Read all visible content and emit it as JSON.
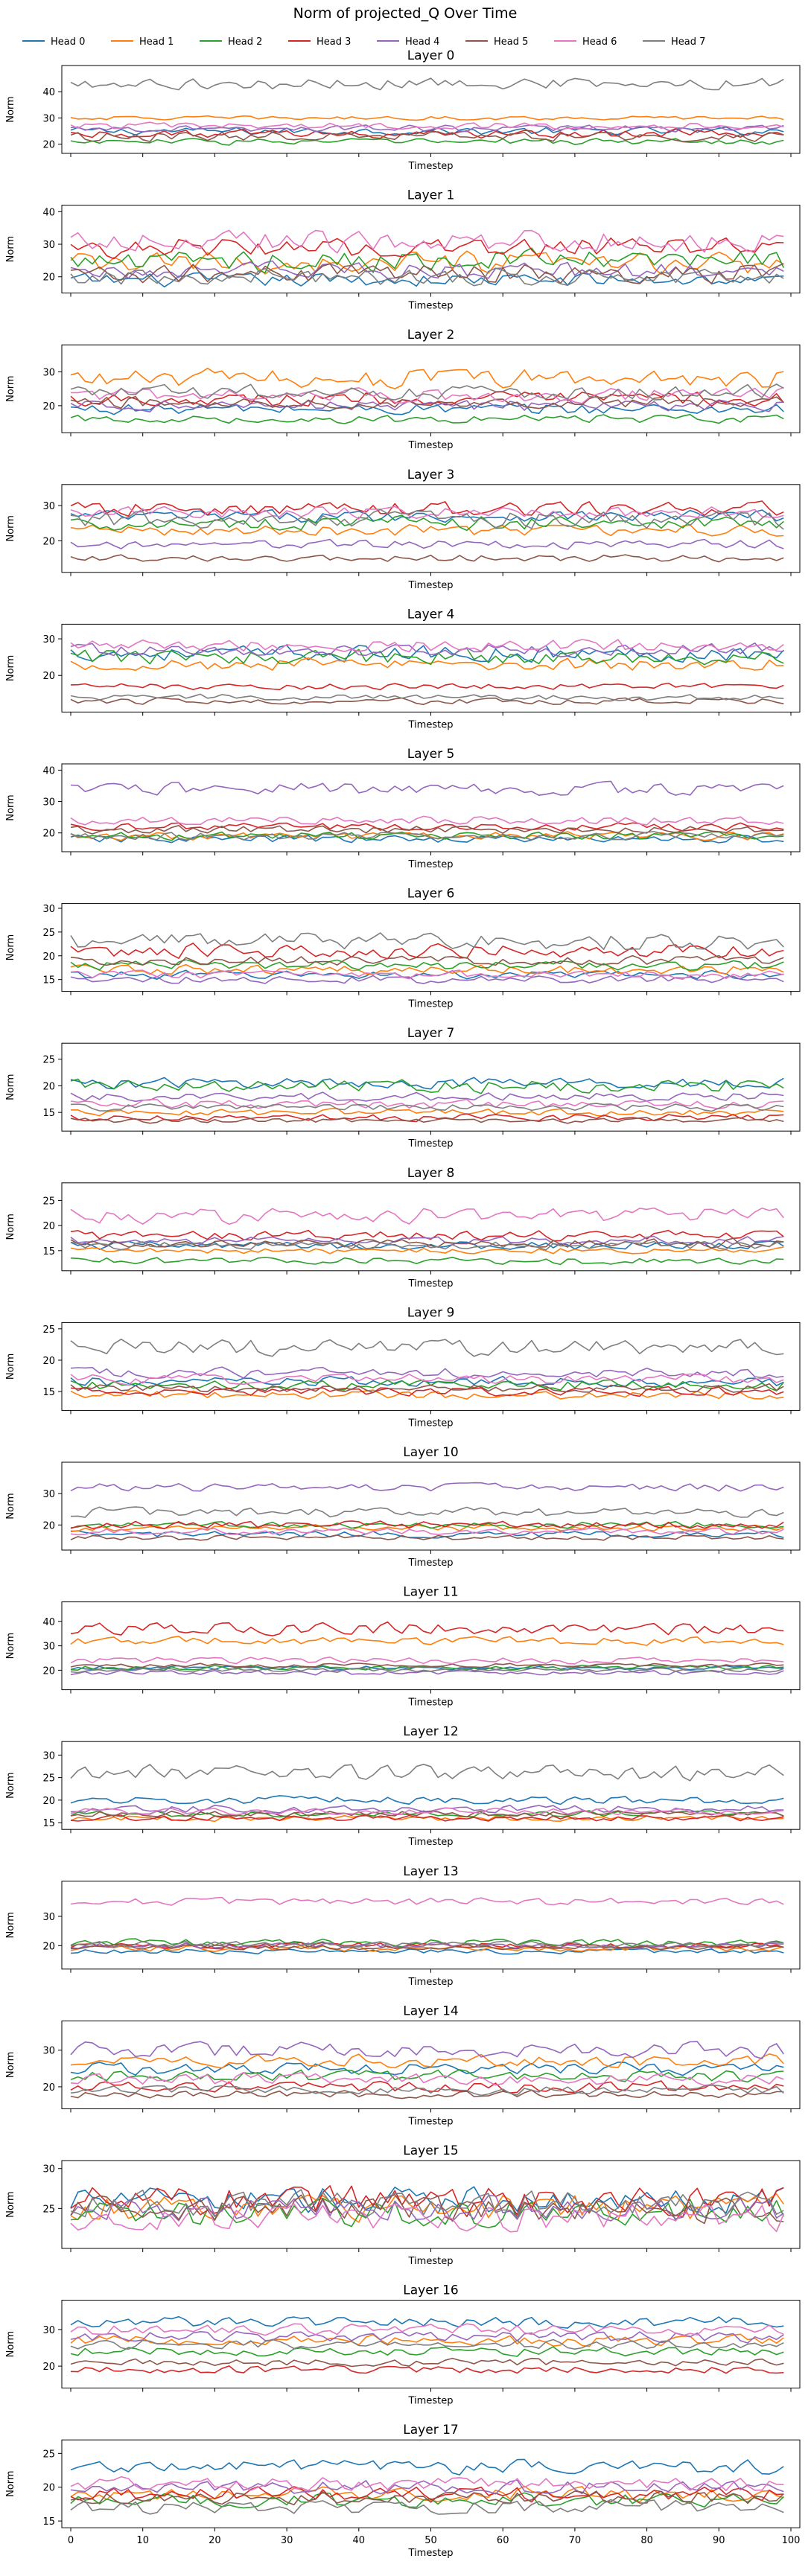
{
  "figure_title": "Norm of projected_Q Over Time",
  "legend": {
    "placement": "top-center",
    "entries": [
      {
        "name": "Head 0",
        "color": "#1f77b4"
      },
      {
        "name": "Head 1",
        "color": "#ff7f0e"
      },
      {
        "name": "Head 2",
        "color": "#2ca02c"
      },
      {
        "name": "Head 3",
        "color": "#d62728"
      },
      {
        "name": "Head 4",
        "color": "#9467bd"
      },
      {
        "name": "Head 5",
        "color": "#8c564b"
      },
      {
        "name": "Head 6",
        "color": "#e377c2"
      },
      {
        "name": "Head 7",
        "color": "#7f7f7f"
      }
    ]
  },
  "chart_data": [
    {
      "type": "line",
      "title": "Layer 0",
      "xlabel": "Timestep",
      "ylabel": "Norm",
      "xlim": [
        0,
        100
      ],
      "ylim": [
        16.5,
        50
      ],
      "yticks": [
        20,
        30,
        40
      ],
      "series": [
        {
          "name": "Head 0",
          "mean": 25,
          "amp": 1.8
        },
        {
          "name": "Head 1",
          "mean": 30,
          "amp": 0.9
        },
        {
          "name": "Head 2",
          "mean": 21,
          "amp": 1.5
        },
        {
          "name": "Head 3",
          "mean": 24,
          "amp": 2.0
        },
        {
          "name": "Head 4",
          "mean": 26,
          "amp": 1.5
        },
        {
          "name": "Head 5",
          "mean": 23,
          "amp": 2.2
        },
        {
          "name": "Head 6",
          "mean": 27,
          "amp": 1.5
        },
        {
          "name": "Head 7",
          "mean": 43,
          "amp": 2.5
        }
      ]
    },
    {
      "type": "line",
      "title": "Layer 1",
      "xlabel": "Timestep",
      "ylabel": "Norm",
      "xlim": [
        0,
        100
      ],
      "ylim": [
        15,
        42
      ],
      "yticks": [
        20,
        30,
        40
      ],
      "series": [
        {
          "name": "Head 0",
          "mean": 19,
          "amp": 2.5
        },
        {
          "name": "Head 1",
          "mean": 24,
          "amp": 4.0
        },
        {
          "name": "Head 2",
          "mean": 25,
          "amp": 4.0
        },
        {
          "name": "Head 3",
          "mean": 29,
          "amp": 3.5
        },
        {
          "name": "Head 4",
          "mean": 22,
          "amp": 3.0
        },
        {
          "name": "Head 5",
          "mean": 21,
          "amp": 3.5
        },
        {
          "name": "Head 6",
          "mean": 31,
          "amp": 4.0
        },
        {
          "name": "Head 7",
          "mean": 20,
          "amp": 3.0
        }
      ]
    },
    {
      "type": "line",
      "title": "Layer 2",
      "xlabel": "Timestep",
      "ylabel": "Norm",
      "xlim": [
        0,
        100
      ],
      "ylim": [
        12,
        38
      ],
      "yticks": [
        20,
        30
      ],
      "series": [
        {
          "name": "Head 0",
          "mean": 19,
          "amp": 2.0
        },
        {
          "name": "Head 1",
          "mean": 28,
          "amp": 3.5
        },
        {
          "name": "Head 2",
          "mean": 16,
          "amp": 1.5
        },
        {
          "name": "Head 3",
          "mean": 22,
          "amp": 2.5
        },
        {
          "name": "Head 4",
          "mean": 20,
          "amp": 2.0
        },
        {
          "name": "Head 5",
          "mean": 21,
          "amp": 2.0
        },
        {
          "name": "Head 6",
          "mean": 23,
          "amp": 2.5
        },
        {
          "name": "Head 7",
          "mean": 24,
          "amp": 2.5
        }
      ]
    },
    {
      "type": "line",
      "title": "Layer 3",
      "xlabel": "Timestep",
      "ylabel": "Norm",
      "xlim": [
        0,
        100
      ],
      "ylim": [
        11,
        36
      ],
      "yticks": [
        20,
        30
      ],
      "series": [
        {
          "name": "Head 0",
          "mean": 27,
          "amp": 2.0
        },
        {
          "name": "Head 1",
          "mean": 23,
          "amp": 2.0
        },
        {
          "name": "Head 2",
          "mean": 25,
          "amp": 2.5
        },
        {
          "name": "Head 3",
          "mean": 29,
          "amp": 2.5
        },
        {
          "name": "Head 4",
          "mean": 19,
          "amp": 1.5
        },
        {
          "name": "Head 5",
          "mean": 15,
          "amp": 1.2
        },
        {
          "name": "Head 6",
          "mean": 28,
          "amp": 2.0
        },
        {
          "name": "Head 7",
          "mean": 26,
          "amp": 3.0
        }
      ]
    },
    {
      "type": "line",
      "title": "Layer 4",
      "xlabel": "Timestep",
      "ylabel": "Norm",
      "xlim": [
        0,
        100
      ],
      "ylim": [
        10,
        34
      ],
      "yticks": [
        20,
        30
      ],
      "series": [
        {
          "name": "Head 0",
          "mean": 26,
          "amp": 2.5
        },
        {
          "name": "Head 1",
          "mean": 23,
          "amp": 2.0
        },
        {
          "name": "Head 2",
          "mean": 25,
          "amp": 2.5
        },
        {
          "name": "Head 3",
          "mean": 17,
          "amp": 1.0
        },
        {
          "name": "Head 4",
          "mean": 27,
          "amp": 2.0
        },
        {
          "name": "Head 5",
          "mean": 13,
          "amp": 1.0
        },
        {
          "name": "Head 6",
          "mean": 28,
          "amp": 2.0
        },
        {
          "name": "Head 7",
          "mean": 14,
          "amp": 1.0
        }
      ]
    },
    {
      "type": "line",
      "title": "Layer 5",
      "xlabel": "Timestep",
      "ylabel": "Norm",
      "xlim": [
        0,
        100
      ],
      "ylim": [
        14,
        42
      ],
      "yticks": [
        20,
        30,
        40
      ],
      "series": [
        {
          "name": "Head 0",
          "mean": 18,
          "amp": 1.5
        },
        {
          "name": "Head 1",
          "mean": 19,
          "amp": 1.5
        },
        {
          "name": "Head 2",
          "mean": 19,
          "amp": 1.5
        },
        {
          "name": "Head 3",
          "mean": 22,
          "amp": 1.5
        },
        {
          "name": "Head 4",
          "mean": 34,
          "amp": 2.5
        },
        {
          "name": "Head 5",
          "mean": 21,
          "amp": 1.5
        },
        {
          "name": "Head 6",
          "mean": 24,
          "amp": 1.5
        },
        {
          "name": "Head 7",
          "mean": 19,
          "amp": 1.5
        }
      ]
    },
    {
      "type": "line",
      "title": "Layer 6",
      "xlabel": "Timestep",
      "ylabel": "Norm",
      "xlim": [
        0,
        100
      ],
      "ylim": [
        12.5,
        31
      ],
      "yticks": [
        15,
        20,
        25,
        30
      ],
      "series": [
        {
          "name": "Head 0",
          "mean": 16,
          "amp": 1.0
        },
        {
          "name": "Head 1",
          "mean": 17,
          "amp": 1.2
        },
        {
          "name": "Head 2",
          "mean": 18,
          "amp": 1.2
        },
        {
          "name": "Head 3",
          "mean": 21,
          "amp": 1.8
        },
        {
          "name": "Head 4",
          "mean": 15,
          "amp": 1.0
        },
        {
          "name": "Head 5",
          "mean": 19,
          "amp": 1.2
        },
        {
          "name": "Head 6",
          "mean": 16,
          "amp": 1.0
        },
        {
          "name": "Head 7",
          "mean": 23,
          "amp": 2.2
        }
      ]
    },
    {
      "type": "line",
      "title": "Layer 7",
      "xlabel": "Timestep",
      "ylabel": "Norm",
      "xlim": [
        0,
        100
      ],
      "ylim": [
        11.5,
        28
      ],
      "yticks": [
        15,
        20,
        25
      ],
      "series": [
        {
          "name": "Head 0",
          "mean": 20.5,
          "amp": 1.2
        },
        {
          "name": "Head 1",
          "mean": 15,
          "amp": 0.8
        },
        {
          "name": "Head 2",
          "mean": 20,
          "amp": 1.5
        },
        {
          "name": "Head 3",
          "mean": 14,
          "amp": 0.8
        },
        {
          "name": "Head 4",
          "mean": 18,
          "amp": 1.0
        },
        {
          "name": "Head 5",
          "mean": 13.5,
          "amp": 0.6
        },
        {
          "name": "Head 6",
          "mean": 16.5,
          "amp": 1.0
        },
        {
          "name": "Head 7",
          "mean": 16,
          "amp": 0.8
        }
      ]
    },
    {
      "type": "line",
      "title": "Layer 8",
      "xlabel": "Timestep",
      "ylabel": "Norm",
      "xlim": [
        0,
        100
      ],
      "ylim": [
        11,
        28.5
      ],
      "yticks": [
        15,
        20,
        25
      ],
      "series": [
        {
          "name": "Head 0",
          "mean": 16,
          "amp": 1.0
        },
        {
          "name": "Head 1",
          "mean": 15,
          "amp": 0.8
        },
        {
          "name": "Head 2",
          "mean": 13,
          "amp": 0.8
        },
        {
          "name": "Head 3",
          "mean": 18,
          "amp": 1.2
        },
        {
          "name": "Head 4",
          "mean": 17,
          "amp": 1.0
        },
        {
          "name": "Head 5",
          "mean": 16.5,
          "amp": 1.0
        },
        {
          "name": "Head 6",
          "mean": 22,
          "amp": 1.8
        },
        {
          "name": "Head 7",
          "mean": 16,
          "amp": 1.0
        }
      ]
    },
    {
      "type": "line",
      "title": "Layer 9",
      "xlabel": "Timestep",
      "ylabel": "Norm",
      "xlim": [
        0,
        100
      ],
      "ylim": [
        12,
        26
      ],
      "yticks": [
        15,
        20,
        25
      ],
      "series": [
        {
          "name": "Head 0",
          "mean": 16.5,
          "amp": 1.0
        },
        {
          "name": "Head 1",
          "mean": 14.5,
          "amp": 0.8
        },
        {
          "name": "Head 2",
          "mean": 16,
          "amp": 1.0
        },
        {
          "name": "Head 3",
          "mean": 15,
          "amp": 0.8
        },
        {
          "name": "Head 4",
          "mean": 18,
          "amp": 1.0
        },
        {
          "name": "Head 5",
          "mean": 15.5,
          "amp": 0.8
        },
        {
          "name": "Head 6",
          "mean": 17,
          "amp": 1.0
        },
        {
          "name": "Head 7",
          "mean": 22,
          "amp": 1.5
        }
      ]
    },
    {
      "type": "line",
      "title": "Layer 10",
      "xlabel": "Timestep",
      "ylabel": "Norm",
      "xlim": [
        0,
        100
      ],
      "ylim": [
        12,
        40
      ],
      "yticks": [
        20,
        30
      ],
      "series": [
        {
          "name": "Head 0",
          "mean": 17,
          "amp": 1.2
        },
        {
          "name": "Head 1",
          "mean": 19,
          "amp": 1.2
        },
        {
          "name": "Head 2",
          "mean": 20,
          "amp": 1.2
        },
        {
          "name": "Head 3",
          "mean": 20,
          "amp": 1.5
        },
        {
          "name": "Head 4",
          "mean": 32,
          "amp": 1.5
        },
        {
          "name": "Head 5",
          "mean": 16,
          "amp": 1.0
        },
        {
          "name": "Head 6",
          "mean": 18,
          "amp": 1.2
        },
        {
          "name": "Head 7",
          "mean": 24,
          "amp": 1.8
        }
      ]
    },
    {
      "type": "line",
      "title": "Layer 11",
      "xlabel": "Timestep",
      "ylabel": "Norm",
      "xlim": [
        0,
        100
      ],
      "ylim": [
        12,
        48
      ],
      "yticks": [
        20,
        30,
        40
      ],
      "series": [
        {
          "name": "Head 0",
          "mean": 21,
          "amp": 1.0
        },
        {
          "name": "Head 1",
          "mean": 32,
          "amp": 2.0
        },
        {
          "name": "Head 2",
          "mean": 21,
          "amp": 1.2
        },
        {
          "name": "Head 3",
          "mean": 37,
          "amp": 3.0
        },
        {
          "name": "Head 4",
          "mean": 19,
          "amp": 1.2
        },
        {
          "name": "Head 5",
          "mean": 22,
          "amp": 1.0
        },
        {
          "name": "Head 6",
          "mean": 24,
          "amp": 1.5
        },
        {
          "name": "Head 7",
          "mean": 20,
          "amp": 1.0
        }
      ]
    },
    {
      "type": "line",
      "title": "Layer 12",
      "xlabel": "Timestep",
      "ylabel": "Norm",
      "xlim": [
        0,
        100
      ],
      "ylim": [
        13.5,
        33
      ],
      "yticks": [
        15,
        20,
        25,
        30
      ],
      "series": [
        {
          "name": "Head 0",
          "mean": 20,
          "amp": 1.0
        },
        {
          "name": "Head 1",
          "mean": 16,
          "amp": 0.8
        },
        {
          "name": "Head 2",
          "mean": 17,
          "amp": 0.8
        },
        {
          "name": "Head 3",
          "mean": 16,
          "amp": 0.8
        },
        {
          "name": "Head 4",
          "mean": 18,
          "amp": 1.0
        },
        {
          "name": "Head 5",
          "mean": 17,
          "amp": 0.8
        },
        {
          "name": "Head 6",
          "mean": 17.5,
          "amp": 0.8
        },
        {
          "name": "Head 7",
          "mean": 26,
          "amp": 2.0
        }
      ]
    },
    {
      "type": "line",
      "title": "Layer 13",
      "xlabel": "Timestep",
      "ylabel": "Norm",
      "xlim": [
        0,
        100
      ],
      "ylim": [
        12,
        42
      ],
      "yticks": [
        20,
        30
      ],
      "series": [
        {
          "name": "Head 0",
          "mean": 18,
          "amp": 1.0
        },
        {
          "name": "Head 1",
          "mean": 19,
          "amp": 1.2
        },
        {
          "name": "Head 2",
          "mean": 21,
          "amp": 1.5
        },
        {
          "name": "Head 3",
          "mean": 20,
          "amp": 1.2
        },
        {
          "name": "Head 4",
          "mean": 20,
          "amp": 1.2
        },
        {
          "name": "Head 5",
          "mean": 19.5,
          "amp": 1.0
        },
        {
          "name": "Head 6",
          "mean": 35,
          "amp": 1.5
        },
        {
          "name": "Head 7",
          "mean": 20.5,
          "amp": 1.2
        }
      ]
    },
    {
      "type": "line",
      "title": "Layer 14",
      "xlabel": "Timestep",
      "ylabel": "Norm",
      "xlim": [
        0,
        100
      ],
      "ylim": [
        14,
        38
      ],
      "yticks": [
        20,
        30
      ],
      "series": [
        {
          "name": "Head 0",
          "mean": 25,
          "amp": 2.0
        },
        {
          "name": "Head 1",
          "mean": 27,
          "amp": 2.0
        },
        {
          "name": "Head 2",
          "mean": 23,
          "amp": 2.0
        },
        {
          "name": "Head 3",
          "mean": 20,
          "amp": 1.8
        },
        {
          "name": "Head 4",
          "mean": 30,
          "amp": 2.5
        },
        {
          "name": "Head 5",
          "mean": 18,
          "amp": 1.2
        },
        {
          "name": "Head 6",
          "mean": 22,
          "amp": 2.0
        },
        {
          "name": "Head 7",
          "mean": 19,
          "amp": 1.5
        }
      ]
    },
    {
      "type": "line",
      "title": "Layer 15",
      "xlabel": "Timestep",
      "ylabel": "Norm",
      "xlim": [
        0,
        100
      ],
      "ylim": [
        20,
        31
      ],
      "yticks": [
        25,
        30
      ],
      "series": [
        {
          "name": "Head 0",
          "mean": 26,
          "amp": 2.0
        },
        {
          "name": "Head 1",
          "mean": 25,
          "amp": 2.0
        },
        {
          "name": "Head 2",
          "mean": 24.5,
          "amp": 2.0
        },
        {
          "name": "Head 3",
          "mean": 26,
          "amp": 2.2
        },
        {
          "name": "Head 4",
          "mean": 25,
          "amp": 2.0
        },
        {
          "name": "Head 5",
          "mean": 25,
          "amp": 2.0
        },
        {
          "name": "Head 6",
          "mean": 24,
          "amp": 2.0
        },
        {
          "name": "Head 7",
          "mean": 25.5,
          "amp": 2.0
        }
      ]
    },
    {
      "type": "line",
      "title": "Layer 16",
      "xlabel": "Timestep",
      "ylabel": "Norm",
      "xlim": [
        0,
        100
      ],
      "ylim": [
        14,
        38
      ],
      "yticks": [
        20,
        30
      ],
      "series": [
        {
          "name": "Head 0",
          "mean": 32,
          "amp": 1.8
        },
        {
          "name": "Head 1",
          "mean": 27,
          "amp": 1.8
        },
        {
          "name": "Head 2",
          "mean": 24,
          "amp": 1.5
        },
        {
          "name": "Head 3",
          "mean": 19,
          "amp": 1.2
        },
        {
          "name": "Head 4",
          "mean": 28,
          "amp": 1.8
        },
        {
          "name": "Head 5",
          "mean": 21,
          "amp": 1.2
        },
        {
          "name": "Head 6",
          "mean": 30,
          "amp": 1.8
        },
        {
          "name": "Head 7",
          "mean": 26,
          "amp": 1.5
        }
      ]
    },
    {
      "type": "line",
      "title": "Layer 17",
      "xlabel": "Timestep",
      "ylabel": "Norm",
      "xlim": [
        0,
        100
      ],
      "ylim": [
        14,
        27
      ],
      "yticks": [
        15,
        20,
        25
      ],
      "series": [
        {
          "name": "Head 0",
          "mean": 23,
          "amp": 1.2
        },
        {
          "name": "Head 1",
          "mean": 19,
          "amp": 1.2
        },
        {
          "name": "Head 2",
          "mean": 18,
          "amp": 1.2
        },
        {
          "name": "Head 3",
          "mean": 19,
          "amp": 1.2
        },
        {
          "name": "Head 4",
          "mean": 20,
          "amp": 1.2
        },
        {
          "name": "Head 5",
          "mean": 18.5,
          "amp": 1.2
        },
        {
          "name": "Head 6",
          "mean": 20.5,
          "amp": 1.2
        },
        {
          "name": "Head 7",
          "mean": 17,
          "amp": 1.2
        }
      ]
    }
  ],
  "shared_xticks": [
    0,
    10,
    20,
    30,
    40,
    50,
    60,
    70,
    80,
    90,
    100
  ]
}
